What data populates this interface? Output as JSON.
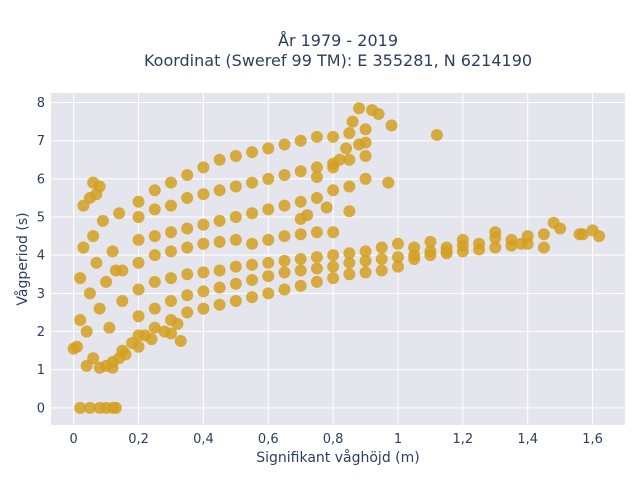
{
  "chart_data": {
    "type": "scatter",
    "title_line1": "År 1979 - 2019",
    "title_line2": "Koordinat (Sweref 99 TM): E 355281, N 6214190",
    "xlabel": "Signifikant våghöjd (m)",
    "ylabel": "Vågperiod (s)",
    "xlim": [
      -0.07,
      1.7
    ],
    "ylim": [
      -0.45,
      8.25
    ],
    "xticks": [
      0,
      0.2,
      0.4,
      0.6,
      0.8,
      1,
      1.2,
      1.4,
      1.6
    ],
    "xtick_labels": [
      "0",
      "0,2",
      "0,4",
      "0,6",
      "0,8",
      "1",
      "1,2",
      "1,4",
      "1,6"
    ],
    "yticks": [
      0,
      1,
      2,
      3,
      4,
      5,
      6,
      7,
      8
    ],
    "ytick_labels": [
      "0",
      "1",
      "2",
      "3",
      "4",
      "5",
      "6",
      "7",
      "8"
    ],
    "grid": true,
    "marker_color": "#d4a020",
    "plot_bg": "#e5e5ee",
    "series": [
      {
        "points": [
          [
            0.02,
            0
          ],
          [
            0.05,
            0
          ],
          [
            0.08,
            0
          ],
          [
            0.1,
            0
          ],
          [
            0.12,
            0
          ],
          [
            0.13,
            0
          ],
          [
            0.0,
            1.55
          ],
          [
            0.01,
            1.6
          ],
          [
            0.02,
            3.4
          ],
          [
            0.02,
            2.3
          ],
          [
            0.03,
            4.2
          ],
          [
            0.03,
            5.3
          ],
          [
            0.04,
            1.1
          ],
          [
            0.05,
            5.5
          ],
          [
            0.06,
            5.9
          ],
          [
            0.07,
            5.6
          ],
          [
            0.08,
            5.8
          ],
          [
            0.04,
            2.0
          ],
          [
            0.06,
            1.3
          ],
          [
            0.08,
            1.05
          ],
          [
            0.1,
            1.1
          ],
          [
            0.12,
            1.05
          ],
          [
            0.14,
            1.3
          ],
          [
            0.05,
            3.0
          ],
          [
            0.06,
            4.5
          ],
          [
            0.07,
            3.8
          ],
          [
            0.08,
            2.6
          ],
          [
            0.09,
            4.9
          ],
          [
            0.1,
            3.3
          ],
          [
            0.11,
            2.1
          ],
          [
            0.12,
            4.1
          ],
          [
            0.13,
            3.6
          ],
          [
            0.14,
            5.1
          ],
          [
            0.15,
            2.8
          ],
          [
            0.2,
            5.4
          ],
          [
            0.25,
            5.7
          ],
          [
            0.3,
            5.9
          ],
          [
            0.35,
            6.1
          ],
          [
            0.4,
            6.3
          ],
          [
            0.45,
            6.5
          ],
          [
            0.5,
            6.6
          ],
          [
            0.55,
            6.7
          ],
          [
            0.6,
            6.8
          ],
          [
            0.65,
            6.9
          ],
          [
            0.7,
            7.0
          ],
          [
            0.75,
            7.1
          ],
          [
            0.8,
            7.1
          ],
          [
            0.85,
            7.2
          ],
          [
            0.9,
            7.3
          ],
          [
            0.2,
            4.4
          ],
          [
            0.25,
            4.5
          ],
          [
            0.3,
            4.6
          ],
          [
            0.35,
            4.7
          ],
          [
            0.4,
            4.8
          ],
          [
            0.45,
            4.9
          ],
          [
            0.5,
            5.0
          ],
          [
            0.55,
            5.1
          ],
          [
            0.6,
            5.2
          ],
          [
            0.65,
            5.3
          ],
          [
            0.7,
            5.4
          ],
          [
            0.75,
            5.5
          ],
          [
            0.8,
            5.7
          ],
          [
            0.85,
            5.8
          ],
          [
            0.9,
            6.0
          ],
          [
            0.2,
            5.0
          ],
          [
            0.3,
            5.3
          ],
          [
            0.4,
            5.6
          ],
          [
            0.5,
            5.8
          ],
          [
            0.6,
            6.0
          ],
          [
            0.7,
            6.2
          ],
          [
            0.8,
            6.4
          ],
          [
            0.9,
            6.6
          ],
          [
            0.25,
            5.2
          ],
          [
            0.35,
            5.5
          ],
          [
            0.45,
            5.7
          ],
          [
            0.55,
            5.9
          ],
          [
            0.65,
            6.1
          ],
          [
            0.75,
            6.3
          ],
          [
            0.85,
            6.5
          ],
          [
            0.88,
            7.85
          ],
          [
            0.92,
            7.8
          ],
          [
            0.94,
            7.7
          ],
          [
            0.98,
            7.4
          ],
          [
            0.86,
            7.5
          ],
          [
            1.12,
            7.15
          ],
          [
            0.97,
            5.9
          ],
          [
            0.85,
            5.15
          ],
          [
            0.78,
            5.25
          ],
          [
            0.72,
            5.05
          ],
          [
            0.7,
            4.95
          ],
          [
            0.75,
            6.05
          ],
          [
            0.8,
            6.3
          ],
          [
            0.82,
            6.5
          ],
          [
            0.84,
            6.8
          ],
          [
            0.88,
            6.9
          ],
          [
            0.9,
            6.95
          ],
          [
            0.15,
            3.6
          ],
          [
            0.2,
            3.8
          ],
          [
            0.25,
            4.0
          ],
          [
            0.3,
            4.1
          ],
          [
            0.35,
            4.2
          ],
          [
            0.4,
            4.3
          ],
          [
            0.45,
            4.35
          ],
          [
            0.5,
            4.4
          ],
          [
            0.55,
            4.3
          ],
          [
            0.6,
            4.4
          ],
          [
            0.65,
            4.5
          ],
          [
            0.7,
            4.55
          ],
          [
            0.75,
            4.6
          ],
          [
            0.8,
            4.6
          ],
          [
            0.2,
            2.4
          ],
          [
            0.25,
            2.6
          ],
          [
            0.3,
            2.8
          ],
          [
            0.35,
            2.95
          ],
          [
            0.4,
            3.05
          ],
          [
            0.45,
            3.15
          ],
          [
            0.5,
            3.25
          ],
          [
            0.55,
            3.35
          ],
          [
            0.6,
            3.45
          ],
          [
            0.65,
            3.55
          ],
          [
            0.7,
            3.6
          ],
          [
            0.75,
            3.65
          ],
          [
            0.8,
            3.7
          ],
          [
            0.85,
            3.8
          ],
          [
            0.9,
            3.85
          ],
          [
            0.95,
            3.9
          ],
          [
            1.0,
            3.95
          ],
          [
            0.2,
            1.9
          ],
          [
            0.25,
            2.1
          ],
          [
            0.3,
            2.3
          ],
          [
            0.35,
            2.5
          ],
          [
            0.4,
            2.6
          ],
          [
            0.45,
            2.7
          ],
          [
            0.5,
            2.8
          ],
          [
            0.55,
            2.9
          ],
          [
            0.6,
            3.0
          ],
          [
            0.65,
            3.1
          ],
          [
            0.7,
            3.2
          ],
          [
            0.75,
            3.3
          ],
          [
            0.8,
            3.4
          ],
          [
            0.85,
            3.5
          ],
          [
            0.9,
            3.55
          ],
          [
            0.95,
            3.6
          ],
          [
            1.0,
            3.7
          ],
          [
            0.2,
            3.1
          ],
          [
            0.25,
            3.3
          ],
          [
            0.3,
            3.4
          ],
          [
            0.35,
            3.5
          ],
          [
            0.4,
            3.55
          ],
          [
            0.45,
            3.6
          ],
          [
            0.5,
            3.7
          ],
          [
            0.55,
            3.75
          ],
          [
            0.6,
            3.8
          ],
          [
            0.65,
            3.85
          ],
          [
            0.7,
            3.9
          ],
          [
            0.75,
            3.95
          ],
          [
            0.8,
            4.0
          ],
          [
            0.85,
            4.05
          ],
          [
            0.9,
            4.1
          ],
          [
            0.95,
            4.2
          ],
          [
            1.0,
            4.3
          ],
          [
            1.05,
            4.2
          ],
          [
            1.1,
            4.35
          ],
          [
            1.15,
            4.1
          ],
          [
            1.2,
            4.4
          ],
          [
            1.25,
            4.3
          ],
          [
            1.3,
            4.45
          ],
          [
            1.35,
            4.4
          ],
          [
            1.4,
            4.5
          ],
          [
            1.45,
            4.55
          ],
          [
            1.5,
            4.7
          ],
          [
            1.56,
            4.55
          ],
          [
            1.6,
            4.65
          ],
          [
            1.62,
            4.5
          ],
          [
            1.57,
            4.55
          ],
          [
            1.48,
            4.85
          ],
          [
            1.3,
            4.6
          ],
          [
            1.38,
            4.3
          ],
          [
            1.45,
            4.2
          ],
          [
            1.05,
            3.9
          ],
          [
            1.1,
            4.0
          ],
          [
            1.15,
            4.05
          ],
          [
            1.2,
            4.1
          ],
          [
            1.25,
            4.15
          ],
          [
            1.3,
            4.2
          ],
          [
            1.35,
            4.25
          ],
          [
            1.4,
            4.3
          ],
          [
            1.05,
            4.0
          ],
          [
            1.1,
            4.1
          ],
          [
            1.15,
            4.2
          ],
          [
            1.2,
            4.25
          ],
          [
            0.15,
            1.5
          ],
          [
            0.18,
            1.7
          ],
          [
            0.22,
            1.9
          ],
          [
            0.28,
            2.0
          ],
          [
            0.32,
            2.2
          ],
          [
            0.12,
            1.2
          ],
          [
            0.16,
            1.4
          ],
          [
            0.2,
            1.6
          ],
          [
            0.24,
            1.8
          ],
          [
            0.3,
            1.95
          ],
          [
            0.33,
            1.75
          ]
        ]
      }
    ]
  }
}
